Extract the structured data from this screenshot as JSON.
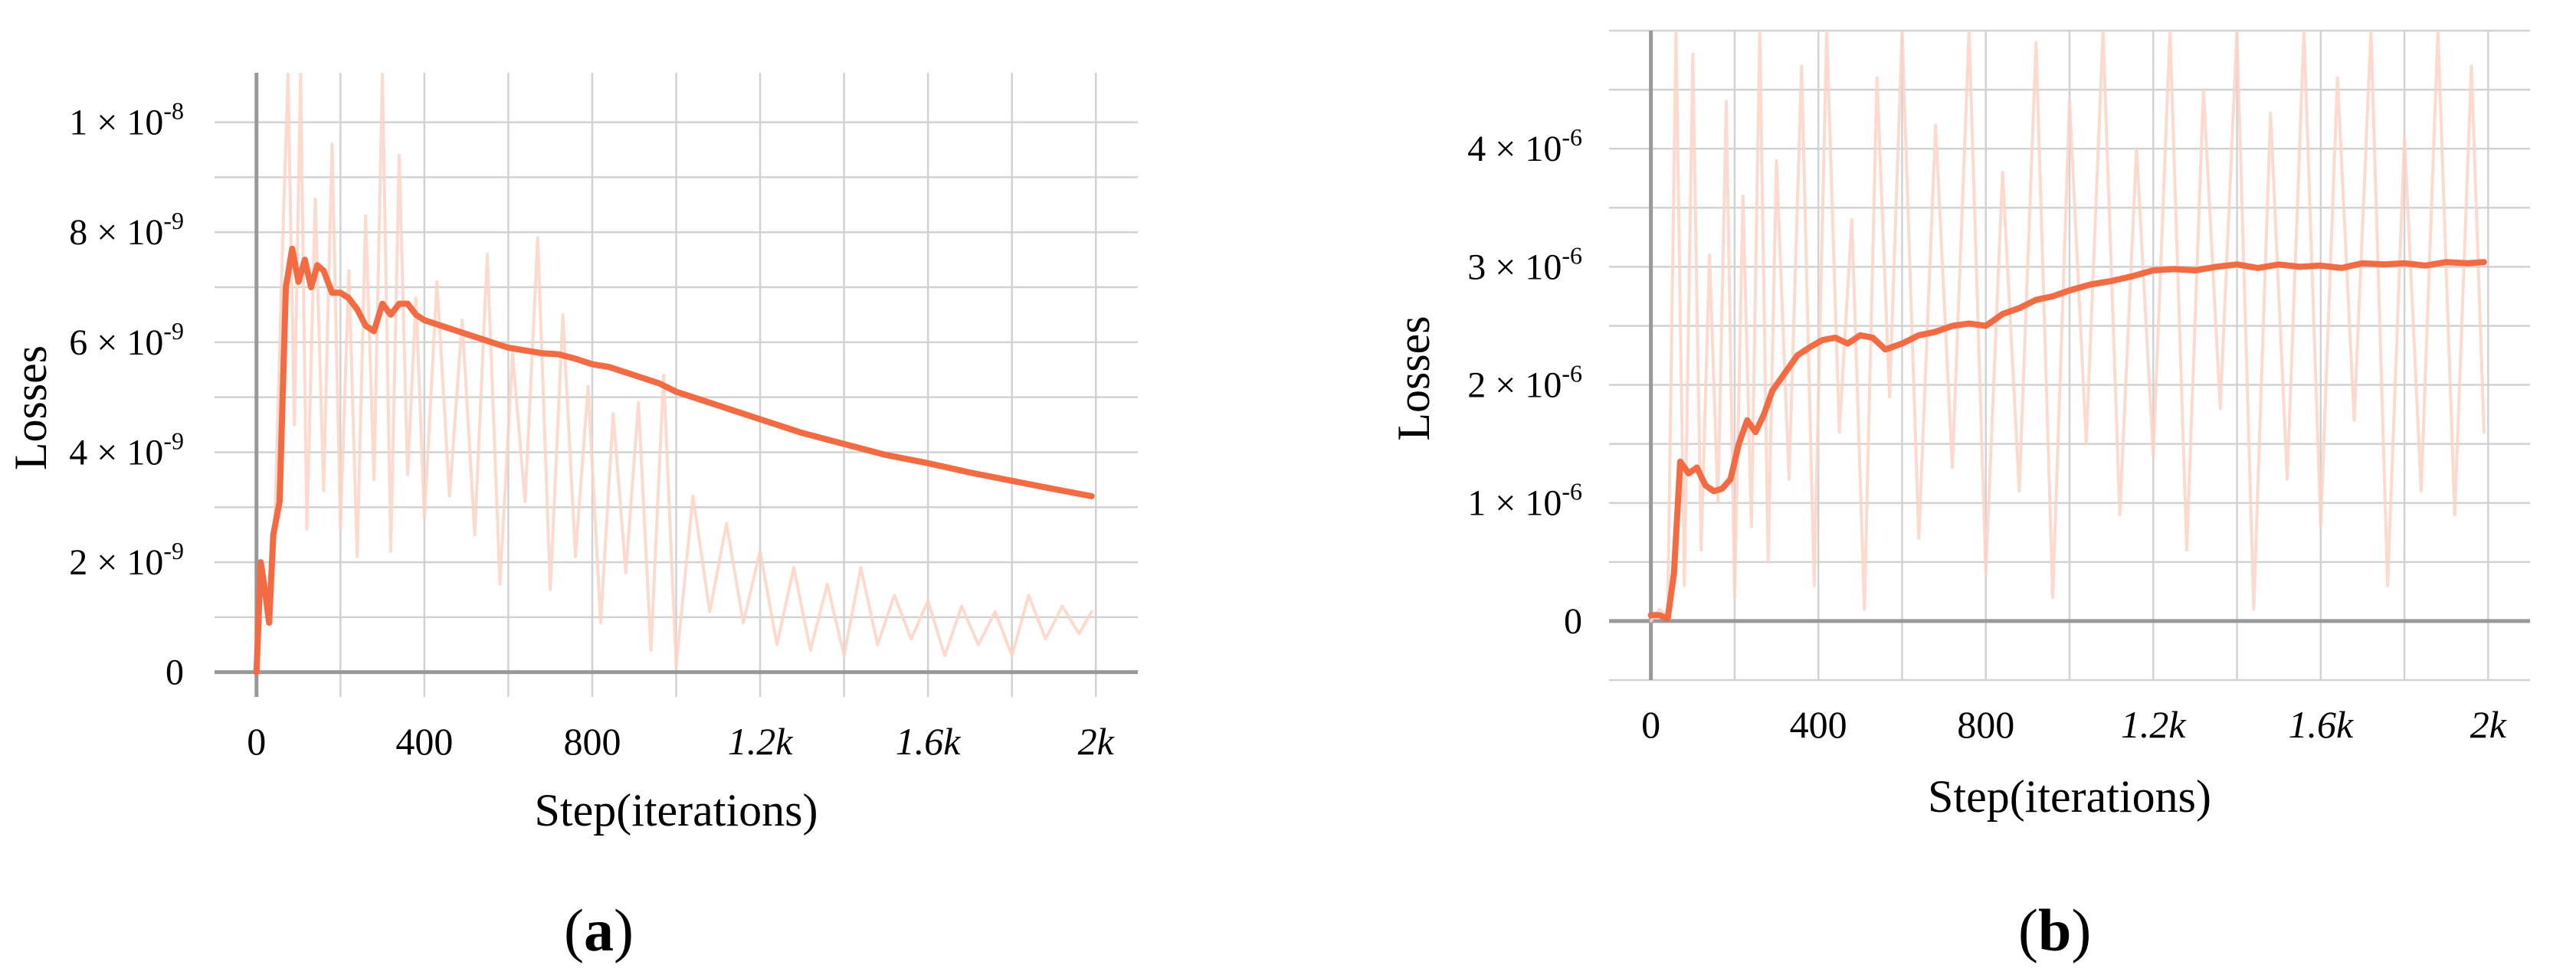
{
  "panels": [
    {
      "label_open": "(",
      "label_letter": "a",
      "label_close": ")"
    },
    {
      "label_open": "(",
      "label_letter": "b",
      "label_close": ")"
    }
  ],
  "colors": {
    "smoothed": "#f26b43",
    "raw": "#fbd3c6",
    "grid": "#d2d2d2",
    "axis": "#999999",
    "background": "#ffffff"
  },
  "chart_data": [
    {
      "type": "line",
      "xlabel": "Step(iterations)",
      "ylabel": "Losses",
      "xlim": [
        -100,
        2100
      ],
      "ylim": [
        -4.5e-10,
        1.09e-08
      ],
      "x_ticks": [
        0,
        400,
        800,
        1200,
        1600,
        2000
      ],
      "x_tick_labels": [
        "0",
        "400",
        "800",
        "1.2k",
        "1.6k",
        "2k"
      ],
      "y_ticks": [
        0,
        2e-09,
        4e-09,
        6e-09,
        8e-09,
        1e-08
      ],
      "y_tick_labels": [
        {
          "mantissa": "0",
          "exponent": ""
        },
        {
          "mantissa": "2 × 10",
          "exponent": "-9"
        },
        {
          "mantissa": "4 × 10",
          "exponent": "-9"
        },
        {
          "mantissa": "6 × 10",
          "exponent": "-9"
        },
        {
          "mantissa": "8 × 10",
          "exponent": "-9"
        },
        {
          "mantissa": "1 × 10",
          "exponent": "-8"
        }
      ],
      "grid": true,
      "series": [
        {
          "role": "raw",
          "x": [
            0,
            15,
            30,
            45,
            60,
            75,
            90,
            105,
            120,
            140,
            160,
            180,
            200,
            220,
            240,
            260,
            280,
            300,
            320,
            340,
            360,
            380,
            400,
            430,
            460,
            490,
            520,
            550,
            580,
            610,
            640,
            670,
            700,
            730,
            760,
            790,
            820,
            850,
            880,
            910,
            940,
            970,
            1000,
            1040,
            1080,
            1120,
            1160,
            1200,
            1240,
            1280,
            1320,
            1360,
            1400,
            1440,
            1480,
            1520,
            1560,
            1600,
            1640,
            1680,
            1720,
            1760,
            1800,
            1840,
            1880,
            1920,
            1960,
            1990
          ],
          "y": [
            0,
            2e-09,
            9e-10,
            3.1e-09,
            7.2e-09,
            1.09e-08,
            4.5e-09,
            1.09e-08,
            2.6e-09,
            8.6e-09,
            3.3e-09,
            9.6e-09,
            2.6e-09,
            7.3e-09,
            2.1e-09,
            8.3e-09,
            3.5e-09,
            1.09e-08,
            2.2e-09,
            9.4e-09,
            3.6e-09,
            6.8e-09,
            2.8e-09,
            7.1e-09,
            3.2e-09,
            6.4e-09,
            2.5e-09,
            7.6e-09,
            1.6e-09,
            5.8e-09,
            3.1e-09,
            7.9e-09,
            1.5e-09,
            6.5e-09,
            2.1e-09,
            5.2e-09,
            9e-10,
            4.7e-09,
            1.8e-09,
            4.9e-09,
            4e-10,
            5.4e-09,
            1e-10,
            3.2e-09,
            1.1e-09,
            2.7e-09,
            9e-10,
            2.2e-09,
            5e-10,
            1.9e-09,
            4e-10,
            1.6e-09,
            3e-10,
            1.9e-09,
            5e-10,
            1.4e-09,
            6e-10,
            1.3e-09,
            3e-10,
            1.2e-09,
            5e-10,
            1.1e-09,
            3e-10,
            1.4e-09,
            6e-10,
            1.2e-09,
            7e-10,
            1.1e-09
          ]
        },
        {
          "role": "smoothed",
          "x": [
            0,
            10,
            20,
            30,
            40,
            55,
            70,
            85,
            100,
            115,
            130,
            145,
            160,
            180,
            200,
            220,
            240,
            260,
            280,
            300,
            320,
            340,
            360,
            380,
            400,
            440,
            480,
            520,
            560,
            600,
            640,
            680,
            720,
            760,
            800,
            840,
            880,
            920,
            960,
            1000,
            1100,
            1200,
            1300,
            1400,
            1500,
            1600,
            1700,
            1800,
            1900,
            1990
          ],
          "y": [
            0,
            2e-09,
            1.5e-09,
            9e-10,
            2.5e-09,
            3.1e-09,
            7e-09,
            7.7e-09,
            7.1e-09,
            7.5e-09,
            7e-09,
            7.4e-09,
            7.3e-09,
            6.9e-09,
            6.9e-09,
            6.8e-09,
            6.6e-09,
            6.3e-09,
            6.2e-09,
            6.7e-09,
            6.5e-09,
            6.7e-09,
            6.7e-09,
            6.5e-09,
            6.4e-09,
            6.3e-09,
            6.2e-09,
            6.1e-09,
            6e-09,
            5.9e-09,
            5.85e-09,
            5.8e-09,
            5.78e-09,
            5.7e-09,
            5.6e-09,
            5.55e-09,
            5.45e-09,
            5.35e-09,
            5.25e-09,
            5.1e-09,
            4.85e-09,
            4.6e-09,
            4.35e-09,
            4.15e-09,
            3.95e-09,
            3.8e-09,
            3.63e-09,
            3.48e-09,
            3.33e-09,
            3.2e-09
          ]
        }
      ]
    },
    {
      "type": "line",
      "xlabel": "Step(iterations)",
      "ylabel": "Losses",
      "xlim": [
        -100,
        2100
      ],
      "ylim": [
        -5e-07,
        5e-06
      ],
      "x_ticks": [
        0,
        400,
        800,
        1200,
        1600,
        2000
      ],
      "x_tick_labels": [
        "0",
        "400",
        "800",
        "1.2k",
        "1.6k",
        "2k"
      ],
      "y_ticks": [
        0,
        1e-06,
        2e-06,
        3e-06,
        4e-06
      ],
      "y_tick_labels": [
        {
          "mantissa": "0",
          "exponent": ""
        },
        {
          "mantissa": "1 × 10",
          "exponent": "-6"
        },
        {
          "mantissa": "2 × 10",
          "exponent": "-6"
        },
        {
          "mantissa": "3 × 10",
          "exponent": "-6"
        },
        {
          "mantissa": "4 × 10",
          "exponent": "-6"
        }
      ],
      "grid": true,
      "series": [
        {
          "role": "raw",
          "x": [
            0,
            20,
            40,
            60,
            80,
            100,
            120,
            140,
            160,
            180,
            200,
            220,
            240,
            260,
            280,
            300,
            330,
            360,
            390,
            420,
            450,
            480,
            510,
            540,
            570,
            600,
            640,
            680,
            720,
            760,
            800,
            840,
            880,
            920,
            960,
            1000,
            1040,
            1080,
            1120,
            1160,
            1200,
            1240,
            1280,
            1320,
            1360,
            1400,
            1440,
            1480,
            1520,
            1560,
            1600,
            1640,
            1680,
            1720,
            1760,
            1800,
            1840,
            1880,
            1920,
            1960,
            1990
          ],
          "y": [
            0,
            1e-07,
            5e-08,
            5e-06,
            3e-07,
            4.8e-06,
            6e-07,
            3.1e-06,
            1e-06,
            4.4e-06,
            2e-07,
            3.6e-06,
            8e-07,
            5e-06,
            5e-07,
            3.9e-06,
            1.2e-06,
            4.7e-06,
            3e-07,
            5e-06,
            1.6e-06,
            3.4e-06,
            1e-07,
            4.6e-06,
            1.9e-06,
            5e-06,
            7e-07,
            4.2e-06,
            1.3e-06,
            5e-06,
            4e-07,
            3.8e-06,
            1.1e-06,
            4.9e-06,
            2e-07,
            4.4e-06,
            1.5e-06,
            5e-06,
            9e-07,
            4e-06,
            1.4e-06,
            5e-06,
            6e-07,
            4.5e-06,
            1.8e-06,
            5e-06,
            1e-07,
            4.3e-06,
            1.2e-06,
            5e-06,
            8e-07,
            4.6e-06,
            1.7e-06,
            5e-06,
            3e-07,
            4.1e-06,
            1.1e-06,
            5e-06,
            9e-07,
            4.7e-06,
            1.6e-06
          ]
        },
        {
          "role": "smoothed",
          "x": [
            0,
            20,
            40,
            55,
            70,
            90,
            110,
            130,
            150,
            170,
            190,
            210,
            230,
            250,
            270,
            290,
            320,
            350,
            380,
            410,
            440,
            470,
            500,
            530,
            560,
            600,
            640,
            680,
            720,
            760,
            800,
            840,
            880,
            920,
            960,
            1000,
            1050,
            1100,
            1150,
            1200,
            1250,
            1300,
            1350,
            1400,
            1450,
            1500,
            1550,
            1600,
            1650,
            1700,
            1750,
            1800,
            1850,
            1900,
            1950,
            1990
          ],
          "y": [
            5e-08,
            5e-08,
            2e-08,
            4e-07,
            1.35e-06,
            1.25e-06,
            1.3e-06,
            1.15e-06,
            1.1e-06,
            1.12e-06,
            1.2e-06,
            1.5e-06,
            1.7e-06,
            1.6e-06,
            1.75e-06,
            1.95e-06,
            2.1e-06,
            2.25e-06,
            2.32e-06,
            2.38e-06,
            2.4e-06,
            2.35e-06,
            2.42e-06,
            2.4e-06,
            2.3e-06,
            2.35e-06,
            2.42e-06,
            2.45e-06,
            2.5e-06,
            2.52e-06,
            2.5e-06,
            2.6e-06,
            2.65e-06,
            2.72e-06,
            2.75e-06,
            2.8e-06,
            2.85e-06,
            2.88e-06,
            2.92e-06,
            2.97e-06,
            2.98e-06,
            2.97e-06,
            3e-06,
            3.02e-06,
            2.99e-06,
            3.02e-06,
            3e-06,
            3.01e-06,
            2.99e-06,
            3.03e-06,
            3.02e-06,
            3.03e-06,
            3.01e-06,
            3.04e-06,
            3.03e-06,
            3.04e-06
          ]
        }
      ]
    }
  ]
}
